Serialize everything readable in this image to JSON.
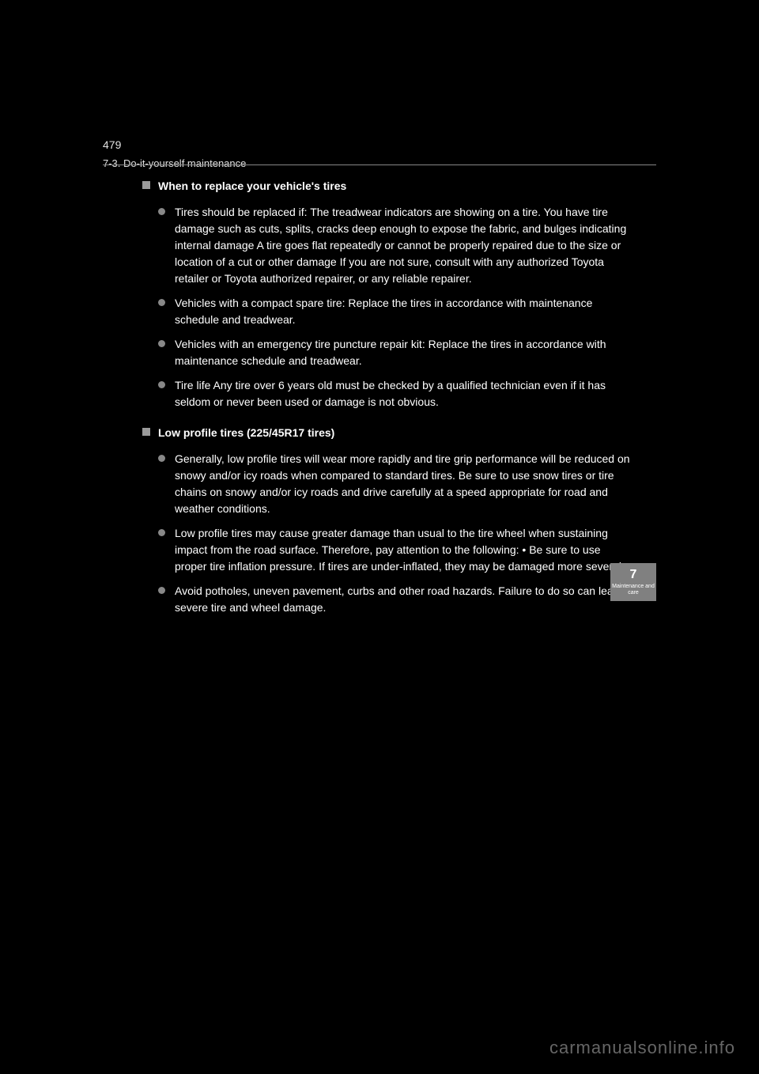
{
  "header": {
    "page_number": "479",
    "breadcrumb": "7-3. Do-it-yourself maintenance"
  },
  "side_tab": {
    "number": "7",
    "label": "Maintenance and care"
  },
  "sections": [
    {
      "title": "When to replace your vehicle's tires",
      "items": [
        "Tires should be replaced if:\nThe treadwear indicators are showing on a tire.\nYou have tire damage such as cuts, splits, cracks deep enough to expose the fabric, and bulges indicating internal damage\nA tire goes flat repeatedly or cannot be properly repaired due to the size or location of a cut or other damage\nIf you are not sure, consult with any authorized Toyota retailer or Toyota authorized repairer, or any reliable repairer.",
        "Vehicles with a compact spare tire: Replace the tires in accordance with maintenance schedule and treadwear.",
        "Vehicles with an emergency tire puncture repair kit: Replace the tires in accordance with maintenance schedule and treadwear.",
        "Tire life\nAny tire over 6 years old must be checked by a qualified technician even if it has seldom or never been used or damage is not obvious."
      ]
    },
    {
      "title": "Low profile tires (225/45R17 tires)",
      "items": [
        "Generally, low profile tires will wear more rapidly and tire grip performance will be reduced on snowy and/or icy roads when compared to standard tires. Be sure to use snow tires or tire chains on snowy and/or icy roads and drive carefully at a speed appropriate for road and weather conditions.",
        "Low profile tires may cause greater damage than usual to the tire wheel when sustaining impact from the road surface. Therefore, pay attention to the following:\n• Be sure to use proper tire inflation pressure. If tires are under-inflated, they may be damaged more severely.",
        "Avoid potholes, uneven pavement, curbs and other road hazards. Failure to do so can lead to severe tire and wheel damage."
      ]
    }
  ],
  "watermark": "carmanualsonline.info",
  "colors": {
    "background": "#000000",
    "text": "#ffffff",
    "divider": "#888888",
    "bullet": "#888888",
    "square": "#9a9a9a",
    "tab_bg": "#808080",
    "watermark": "#666666"
  }
}
